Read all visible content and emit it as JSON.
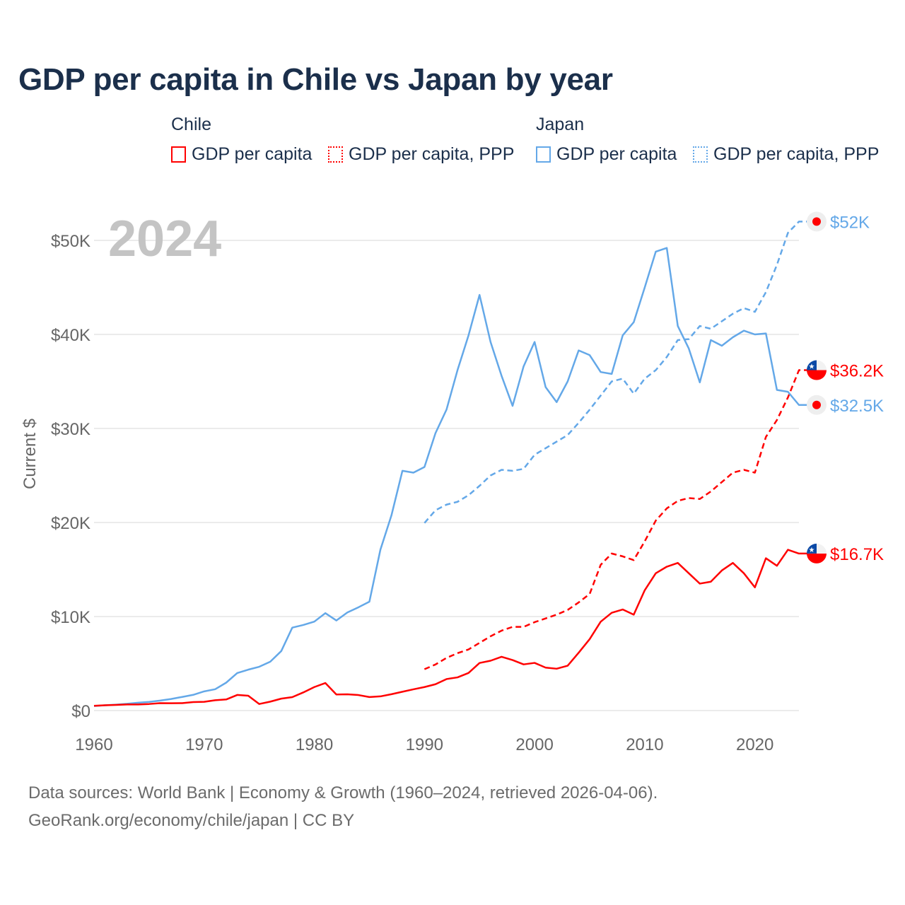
{
  "title": "GDP per capita in Chile vs Japan by year",
  "legend": {
    "groups": [
      {
        "name": "Chile",
        "items": [
          {
            "label": "GDP per capita",
            "style": "solid",
            "color": "#ff0000"
          },
          {
            "label": "GDP per capita, PPP",
            "style": "dotted",
            "color": "#ff0000"
          }
        ]
      },
      {
        "name": "Japan",
        "items": [
          {
            "label": "GDP per capita",
            "style": "solid",
            "color": "#64a8e8"
          },
          {
            "label": "GDP per capita, PPP",
            "style": "dotted",
            "color": "#64a8e8"
          }
        ]
      }
    ]
  },
  "footer": {
    "line1": "Data sources: World Bank | Economy & Growth (1960–2024, retrieved 2026-04-06).",
    "line2": "GeoRank.org/economy/chile/japan | CC BY"
  },
  "chart_data": {
    "type": "line",
    "title": "GDP per capita in Chile vs Japan by year",
    "year_watermark": "2024",
    "xlabel": "",
    "ylabel": "Current $",
    "xlim": [
      1960,
      2024
    ],
    "ylim": [
      0,
      50000
    ],
    "x_ticks": [
      "1960",
      "1970",
      "1980",
      "1990",
      "2000",
      "2010",
      "2020"
    ],
    "y_ticks": [
      {
        "value": 0,
        "label": "$0"
      },
      {
        "value": 10000,
        "label": "$10K"
      },
      {
        "value": 20000,
        "label": "$20K"
      },
      {
        "value": 30000,
        "label": "$30K"
      },
      {
        "value": 40000,
        "label": "$40K"
      },
      {
        "value": 50000,
        "label": "$50K"
      }
    ],
    "grid": true,
    "series": [
      {
        "name": "Japan GDP per capita, PPP",
        "country": "Japan",
        "color": "#64a8e8",
        "dashed": true,
        "start": 1990,
        "end_label": "$52K",
        "values": [
          19950,
          21300,
          21900,
          22200,
          22900,
          23900,
          25000,
          25600,
          25500,
          25700,
          27200,
          27900,
          28600,
          29300,
          30600,
          32000,
          33500,
          35000,
          35300,
          33700,
          35300,
          36200,
          37600,
          39400,
          39500,
          40900,
          40600,
          41400,
          42200,
          42800,
          42400,
          44500,
          47400,
          50800,
          52000
        ]
      },
      {
        "name": "Chile GDP per capita, PPP",
        "country": "Chile",
        "color": "#ff0000",
        "dashed": true,
        "start": 1990,
        "end_label": "$36.2K",
        "values": [
          4400,
          4900,
          5600,
          6100,
          6500,
          7200,
          7900,
          8500,
          8900,
          8900,
          9400,
          9800,
          10200,
          10700,
          11500,
          12400,
          15500,
          16700,
          16400,
          16000,
          18000,
          20200,
          21500,
          22300,
          22600,
          22500,
          23300,
          24300,
          25300,
          25600,
          25300,
          29100,
          30900,
          33300,
          36200
        ]
      },
      {
        "name": "Japan GDP per capita",
        "country": "Japan",
        "color": "#64a8e8",
        "dashed": false,
        "start": 1960,
        "end_label": "$32.5K",
        "values": [
          480,
          560,
          630,
          720,
          840,
          920,
          1060,
          1230,
          1450,
          1670,
          2040,
          2270,
          2970,
          3990,
          4350,
          4660,
          5200,
          6330,
          8820,
          9100,
          9460,
          10360,
          9580,
          10430,
          10980,
          11580,
          17110,
          20750,
          25500,
          25300,
          25900,
          29500,
          32000,
          36200,
          39900,
          44200,
          39200,
          35600,
          32400,
          36600,
          39200,
          34400,
          32800,
          35000,
          38300,
          37800,
          36000,
          35800,
          39900,
          41300,
          45000,
          48800,
          49200,
          40900,
          38500,
          34900,
          39400,
          38800,
          39700,
          40400,
          40000,
          40100,
          34100,
          33900,
          32500
        ]
      },
      {
        "name": "Chile GDP per capita",
        "country": "Chile",
        "color": "#ff0000",
        "dashed": false,
        "start": 1960,
        "end_label": "$16.7K",
        "values": [
          510,
          560,
          600,
          650,
          650,
          700,
          790,
          780,
          790,
          900,
          930,
          1100,
          1180,
          1660,
          1580,
          700,
          950,
          1270,
          1430,
          1930,
          2500,
          2930,
          1710,
          1730,
          1650,
          1440,
          1510,
          1740,
          2000,
          2260,
          2500,
          2800,
          3350,
          3530,
          4000,
          5060,
          5300,
          5720,
          5370,
          4910,
          5070,
          4570,
          4450,
          4770,
          6150,
          7600,
          9450,
          10400,
          10750,
          10200,
          12800,
          14600,
          15300,
          15700,
          14600,
          13500,
          13700,
          14900,
          15700,
          14600,
          13100,
          16200,
          15400,
          17100,
          16700
        ]
      }
    ]
  }
}
